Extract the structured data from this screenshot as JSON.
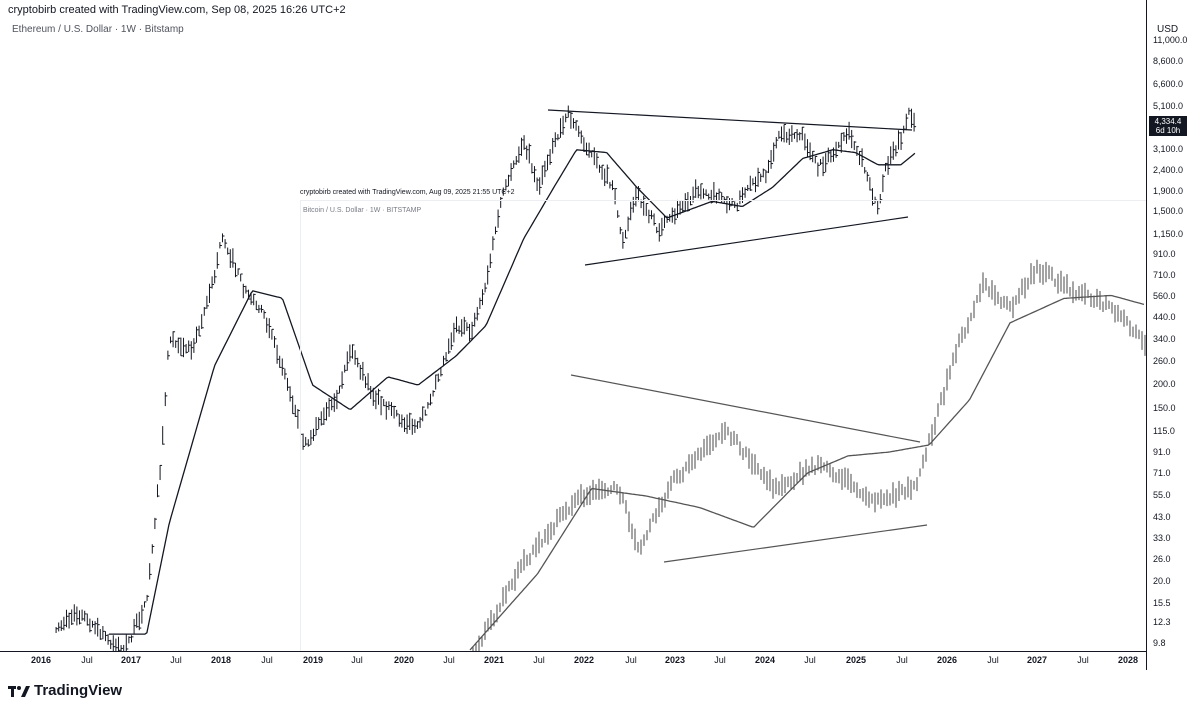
{
  "header": {
    "main": "cryptobirb created with TradingView.com, Sep 08, 2025 16:26 UTC+2",
    "overlay": "cryptobirb created with TradingView.com, Aug 09, 2025 21:55 UTC+2"
  },
  "legend": {
    "main": "Ethereum / U.S. Dollar · 1W · Bitstamp",
    "overlay": "Bitcoin / U.S. Dollar · 1W · BITSTAMP"
  },
  "brand": "TradingView",
  "price_axis": {
    "currency": "USD",
    "ticks": [
      "11,000.0",
      "8,600.0",
      "6,600.0",
      "5,100.0",
      "3,100.0",
      "2,400.0",
      "1,900.0",
      "1,500.0",
      "1,150.0",
      "910.0",
      "710.0",
      "560.0",
      "440.0",
      "340.0",
      "260.0",
      "200.0",
      "150.0",
      "115.0",
      "91.0",
      "71.0",
      "55.0",
      "43.0",
      "33.0",
      "26.0",
      "20.0",
      "15.5",
      "12.3",
      "9.8"
    ],
    "last_price": "4,334.4",
    "countdown": "6d 10h"
  },
  "time_axis": {
    "labels": [
      "2016",
      "Jul",
      "2017",
      "Jul",
      "2018",
      "Jul",
      "2019",
      "Jul",
      "2020",
      "Jul",
      "2021",
      "Jul",
      "2022",
      "Jul",
      "2023",
      "Jul",
      "2024",
      "Jul",
      "2025",
      "Jul",
      "2026",
      "Jul",
      "2027",
      "Jul",
      "2028"
    ],
    "year_labels": [
      "2016",
      "2017",
      "2018",
      "2019",
      "2020",
      "2021",
      "2022",
      "2023",
      "2024",
      "2025",
      "2026",
      "2027",
      "2028"
    ]
  },
  "colors": {
    "bars": "#131722",
    "overlay_bars": "#4a4a4a",
    "ma": "#131722",
    "trendline": "#131722",
    "tag_bg": "#131722"
  },
  "chart_data": [
    {
      "type": "line",
      "title": "Ethereum / U.S. Dollar · 1W · Bitstamp",
      "scale": "log",
      "ylim": [
        9.8,
        11000
      ],
      "x_range": [
        "2016-01",
        "2028-03"
      ],
      "series": [
        {
          "name": "Ethereum / U.S. Dollar",
          "x": [
            "2016-03",
            "2016-06",
            "2016-09",
            "2016-12",
            "2017-03",
            "2017-05",
            "2017-06",
            "2017-09",
            "2017-12",
            "2018-01",
            "2018-04",
            "2018-06",
            "2018-09",
            "2018-12",
            "2019-02",
            "2019-04",
            "2019-06",
            "2019-09",
            "2019-12",
            "2020-03",
            "2020-06",
            "2020-08",
            "2020-10",
            "2020-12",
            "2021-02",
            "2021-05",
            "2021-07",
            "2021-09",
            "2021-11",
            "2022-02",
            "2022-05",
            "2022-06",
            "2022-08",
            "2022-11",
            "2023-02",
            "2023-04",
            "2023-06",
            "2023-09",
            "2023-11",
            "2024-01",
            "2024-03",
            "2024-06",
            "2024-08",
            "2024-11",
            "2024-12",
            "2025-02",
            "2025-04",
            "2025-05",
            "2025-07",
            "2025-08",
            "2025-09"
          ],
          "values": [
            12,
            14,
            11,
            9,
            16,
            90,
            350,
            300,
            700,
            1150,
            600,
            500,
            250,
            100,
            130,
            160,
            300,
            180,
            140,
            120,
            240,
            400,
            370,
            650,
            1700,
            3500,
            2000,
            3400,
            4700,
            2900,
            2000,
            1050,
            1850,
            1200,
            1600,
            1950,
            1850,
            1600,
            2000,
            2300,
            3800,
            3600,
            2500,
            3200,
            3800,
            2700,
            1500,
            2500,
            3500,
            4700,
            4334
          ]
        },
        {
          "name": "Moving average",
          "x": [
            "2016-10",
            "2017-03",
            "2017-06",
            "2017-12",
            "2018-05",
            "2018-09",
            "2019-01",
            "2019-06",
            "2019-11",
            "2020-03",
            "2020-08",
            "2020-12",
            "2021-05",
            "2021-09",
            "2021-12",
            "2022-04",
            "2022-08",
            "2022-12",
            "2023-06",
            "2023-10",
            "2024-02",
            "2024-06",
            "2024-10",
            "2025-01",
            "2025-04",
            "2025-07",
            "2025-09"
          ],
          "values": [
            11,
            11,
            40,
            250,
            600,
            550,
            200,
            150,
            220,
            200,
            280,
            400,
            1100,
            2000,
            3100,
            3000,
            2000,
            1400,
            1700,
            1600,
            2000,
            2800,
            3100,
            3000,
            2600,
            2600,
            3000
          ]
        }
      ],
      "annotations": [
        {
          "type": "trendline",
          "from": [
            "2021-11",
            5200
          ],
          "to": [
            "2025-09",
            4100
          ]
        },
        {
          "type": "trendline",
          "from": [
            "2022-04",
            900
          ],
          "to": [
            "2025-09",
            1450
          ]
        }
      ]
    },
    {
      "type": "line",
      "title": "Bitcoin / U.S. Dollar · 1W · BITSTAMP",
      "series": [
        {
          "name": "Bitcoin / U.S. Dollar",
          "x": [
            0,
            8,
            16,
            22,
            25,
            30,
            38,
            45,
            52,
            60,
            66,
            72,
            76,
            80,
            84,
            90,
            95,
            100
          ],
          "values": [
            8,
            25,
            55,
            60,
            30,
            65,
            120,
            60,
            80,
            52,
            60,
            300,
            650,
            500,
            800,
            600,
            500,
            330
          ]
        },
        {
          "name": "Moving average",
          "x": [
            0,
            10,
            18,
            26,
            34,
            42,
            50,
            56,
            62,
            68,
            74,
            80,
            88,
            95,
            100
          ],
          "values": [
            9,
            22,
            60,
            55,
            48,
            38,
            72,
            88,
            92,
            100,
            170,
            420,
            560,
            580,
            520
          ]
        }
      ],
      "annotations": [
        {
          "type": "trendline",
          "from": [
            20,
            240
          ],
          "to": [
            71,
            100
          ]
        },
        {
          "type": "trendline",
          "from": [
            25,
            24
          ],
          "to": [
            73,
            38
          ]
        }
      ]
    }
  ]
}
